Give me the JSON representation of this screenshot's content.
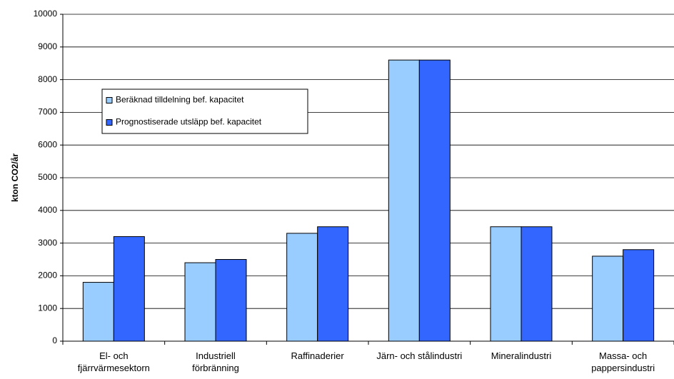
{
  "chart_data": {
    "type": "bar",
    "y_label": "kton CO2/år",
    "categories": [
      "El- och fjärrvärmesektorn",
      "Industriell förbränning",
      "Raffinaderier",
      "Järn- och stålindustri",
      "Mineralindustri",
      "Massa- och pappersindustri"
    ],
    "series": [
      {
        "name": "Beräknad tilldelning bef. kapacitet",
        "color": "#99ccff",
        "values": [
          1800,
          2400,
          3300,
          8600,
          3500,
          2600
        ]
      },
      {
        "name": "Prognostiserade utsläpp bef. kapacitet",
        "color": "#3366ff",
        "values": [
          3200,
          2500,
          3500,
          8600,
          3500,
          2800
        ]
      }
    ],
    "ylim": [
      0,
      10000
    ],
    "yticks": [
      0,
      1000,
      2000,
      3000,
      4000,
      5000,
      6000,
      7000,
      8000,
      9000,
      10000
    ],
    "grid": true,
    "legend": "upper left"
  }
}
